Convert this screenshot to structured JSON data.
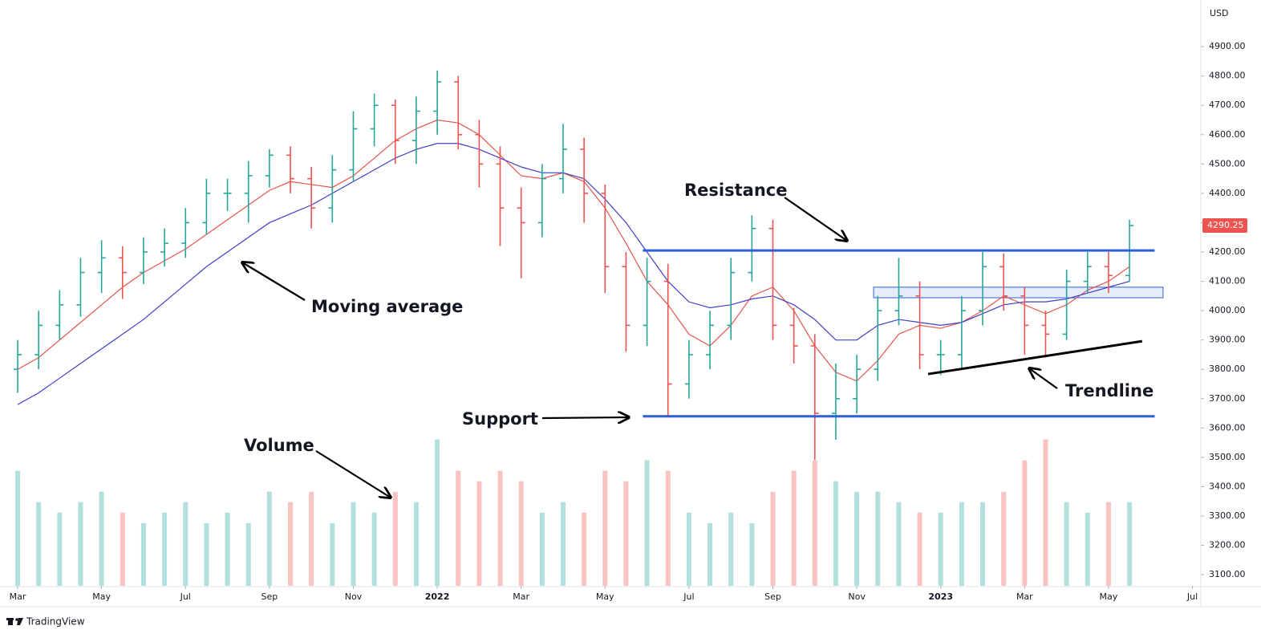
{
  "chart_data": {
    "type": "ohlc",
    "currency": "USD",
    "x": [
      0,
      0.5,
      1,
      1.5,
      2,
      2.5,
      3,
      3.5,
      4,
      4.5,
      5,
      5.5,
      6,
      6.5,
      7,
      7.5,
      8,
      8.5,
      9,
      9.5,
      10,
      10.5,
      11,
      11.5,
      12,
      12.5,
      13,
      13.5,
      14,
      14.5,
      15,
      15.5,
      16,
      16.5,
      17,
      17.5,
      18,
      18.5,
      19,
      19.5,
      20,
      20.5,
      21,
      21.5,
      22,
      22.5,
      23,
      23.5,
      24,
      24.5,
      25,
      25.5,
      26,
      26.5
    ],
    "open": [
      3800,
      3850,
      3950,
      4020,
      4130,
      4180,
      4130,
      4200,
      4230,
      4300,
      4400,
      4400,
      4460,
      4530,
      4450,
      4350,
      4480,
      4620,
      4700,
      4580,
      4680,
      4780,
      4600,
      4500,
      4350,
      4300,
      4450,
      4550,
      4400,
      4150,
      3950,
      4100,
      3750,
      3850,
      3950,
      4130,
      4280,
      3950,
      3880,
      3650,
      3700,
      3800,
      4000,
      4050,
      3850,
      3850,
      4000,
      4150,
      4050,
      3950,
      3920,
      4100,
      4150,
      4120
    ],
    "high": [
      3900,
      4000,
      4070,
      4180,
      4240,
      4220,
      4250,
      4280,
      4350,
      4450,
      4450,
      4510,
      4550,
      4560,
      4490,
      4530,
      4680,
      4740,
      4720,
      4730,
      4818,
      4800,
      4650,
      4560,
      4420,
      4500,
      4637,
      4590,
      4430,
      4200,
      4180,
      4160,
      3900,
      4000,
      4180,
      4325,
      4310,
      4010,
      3920,
      3820,
      3850,
      4050,
      4180,
      4100,
      3900,
      4050,
      4200,
      4195,
      4080,
      4000,
      4140,
      4200,
      4200,
      4310
    ],
    "low": [
      3720,
      3800,
      3900,
      3980,
      4060,
      4040,
      4090,
      4150,
      4180,
      4260,
      4340,
      4300,
      4420,
      4400,
      4280,
      4300,
      4440,
      4560,
      4500,
      4500,
      4600,
      4550,
      4420,
      4220,
      4110,
      4250,
      4400,
      4300,
      4060,
      3860,
      3880,
      3636,
      3700,
      3800,
      3900,
      4100,
      3900,
      3820,
      3491,
      3560,
      3650,
      3760,
      3950,
      3800,
      3780,
      3800,
      3950,
      4000,
      3850,
      3840,
      3900,
      4060,
      4060,
      4100
    ],
    "close": [
      3850,
      3950,
      4020,
      4130,
      4180,
      4130,
      4200,
      4230,
      4300,
      4400,
      4400,
      4460,
      4530,
      4450,
      4350,
      4480,
      4620,
      4700,
      4580,
      4680,
      4780,
      4600,
      4500,
      4350,
      4300,
      4450,
      4550,
      4400,
      4150,
      3950,
      4100,
      3750,
      3850,
      3950,
      4130,
      4280,
      3950,
      3880,
      3650,
      3700,
      3800,
      4000,
      4050,
      3850,
      3850,
      4000,
      4150,
      4050,
      3950,
      3920,
      4100,
      4150,
      4120,
      4290
    ],
    "up_color": "#26a69a",
    "down_color": "#ef5350",
    "moving_averages": [
      {
        "color": "#e5544b",
        "values": [
          3800,
          3840,
          3900,
          3960,
          4020,
          4080,
          4130,
          4170,
          4210,
          4260,
          4310,
          4360,
          4410,
          4440,
          4430,
          4420,
          4460,
          4520,
          4580,
          4620,
          4650,
          4640,
          4600,
          4530,
          4460,
          4450,
          4470,
          4440,
          4350,
          4230,
          4100,
          4020,
          3920,
          3880,
          3950,
          4050,
          4080,
          4000,
          3880,
          3790,
          3760,
          3830,
          3920,
          3950,
          3940,
          3960,
          4000,
          4050,
          4020,
          3990,
          4020,
          4070,
          4100,
          4150
        ]
      },
      {
        "color": "#3f3fc8",
        "values": [
          3680,
          3720,
          3770,
          3820,
          3870,
          3920,
          3970,
          4030,
          4090,
          4150,
          4200,
          4250,
          4300,
          4330,
          4360,
          4400,
          4440,
          4480,
          4520,
          4550,
          4570,
          4570,
          4550,
          4520,
          4490,
          4470,
          4470,
          4450,
          4380,
          4300,
          4200,
          4100,
          4030,
          4010,
          4020,
          4040,
          4050,
          4020,
          3970,
          3900,
          3900,
          3950,
          3970,
          3960,
          3950,
          3960,
          3990,
          4020,
          4030,
          4030,
          4040,
          4060,
          4080,
          4100
        ]
      }
    ],
    "volume": {
      "ylim": [
        0,
        280
      ],
      "values": [
        55,
        40,
        35,
        40,
        45,
        35,
        30,
        35,
        40,
        30,
        35,
        30,
        45,
        40,
        45,
        30,
        40,
        35,
        45,
        40,
        70,
        55,
        50,
        55,
        50,
        35,
        40,
        35,
        55,
        50,
        60,
        55,
        35,
        30,
        35,
        30,
        45,
        55,
        60,
        50,
        45,
        45,
        40,
        35,
        35,
        40,
        40,
        45,
        60,
        70,
        40,
        35,
        40,
        40
      ]
    },
    "xlim": [
      -0.23,
      28.2
    ],
    "ylim": [
      3062,
      5059
    ],
    "xticks": [
      {
        "value": 0,
        "label": "Mar"
      },
      {
        "value": 2,
        "label": "May"
      },
      {
        "value": 4,
        "label": "Jul"
      },
      {
        "value": 6,
        "label": "Sep"
      },
      {
        "value": 8,
        "label": "Nov"
      },
      {
        "value": 10,
        "label": "2022"
      },
      {
        "value": 12,
        "label": "Mar"
      },
      {
        "value": 14,
        "label": "May"
      },
      {
        "value": 16,
        "label": "Jul"
      },
      {
        "value": 18,
        "label": "Sep"
      },
      {
        "value": 20,
        "label": "Nov"
      },
      {
        "value": 22,
        "label": "2023"
      },
      {
        "value": 24,
        "label": "Mar"
      },
      {
        "value": 26,
        "label": "May"
      },
      {
        "value": 28,
        "label": "Jul"
      }
    ],
    "yticks": [
      {
        "value": 3100,
        "label": "3100.00"
      },
      {
        "value": 3200,
        "label": "3200.00"
      },
      {
        "value": 3300,
        "label": "3300.00"
      },
      {
        "value": 3400,
        "label": "3400.00"
      },
      {
        "value": 3500,
        "label": "3500.00"
      },
      {
        "value": 3600,
        "label": "3600.00"
      },
      {
        "value": 3700,
        "label": "3700.00"
      },
      {
        "value": 3800,
        "label": "3800.00"
      },
      {
        "value": 3900,
        "label": "3900.00"
      },
      {
        "value": 4000,
        "label": "4000.00"
      },
      {
        "value": 4100,
        "label": "4100.00"
      },
      {
        "value": 4200,
        "label": "4200.00"
      },
      {
        "value": 4300,
        "label": "4300.00"
      },
      {
        "value": 4400,
        "label": "4400.00"
      },
      {
        "value": 4500,
        "label": "4500.00"
      },
      {
        "value": 4600,
        "label": "4600.00"
      },
      {
        "value": 4700,
        "label": "4700.00"
      },
      {
        "value": 4800,
        "label": "4800.00"
      },
      {
        "value": 4900,
        "label": "4900.00"
      }
    ],
    "grid": false,
    "last_price": 4290.25,
    "lines": [
      {
        "color": "#2f5fd6",
        "x": [
          14.9,
          27.1
        ],
        "y": [
          4205,
          4205
        ]
      },
      {
        "color": "#2f5fd6",
        "x": [
          14.9,
          27.1
        ],
        "y": [
          3640,
          3640
        ]
      },
      {
        "color": "#000000",
        "x": [
          21.7,
          26.8
        ],
        "y": [
          3784,
          3896
        ]
      }
    ],
    "zone": {
      "color": "#2f5fd6",
      "x": [
        20.4,
        27.3
      ],
      "y": [
        4044,
        4080
      ]
    },
    "annotations": [
      "Resistance",
      "Moving average",
      "Support",
      "Volume",
      "Trendline"
    ]
  },
  "footer": {
    "brand": "TradingView"
  }
}
